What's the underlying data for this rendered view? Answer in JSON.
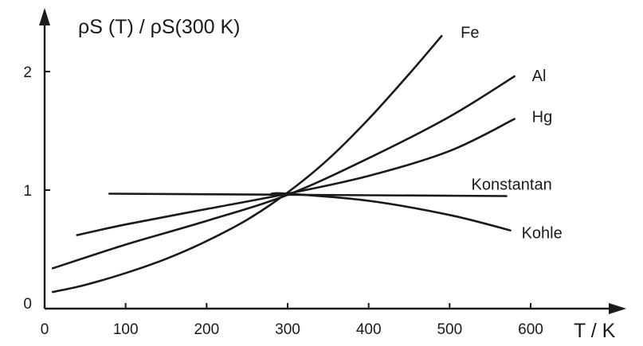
{
  "chart_data": {
    "type": "line",
    "title": "",
    "ylabel": "ρS (T) / ρS(300 K)",
    "xlabel": "T / K",
    "xlim": [
      0,
      680
    ],
    "ylim": [
      0,
      2.45
    ],
    "x_ticks": [
      {
        "value": 0,
        "label": "0"
      },
      {
        "value": 100,
        "label": "100"
      },
      {
        "value": 200,
        "label": "200"
      },
      {
        "value": 300,
        "label": "300"
      },
      {
        "value": 400,
        "label": "400"
      },
      {
        "value": 500,
        "label": "500"
      },
      {
        "value": 600,
        "label": "600"
      }
    ],
    "y_ticks": [
      {
        "value": 0,
        "label": "0"
      },
      {
        "value": 1,
        "label": "1"
      },
      {
        "value": 2,
        "label": "2"
      }
    ],
    "grid": false,
    "legend": "labels at line ends",
    "series": [
      {
        "name": "Fe",
        "points": [
          [
            10,
            0.14
          ],
          [
            50,
            0.2
          ],
          [
            100,
            0.3
          ],
          [
            150,
            0.42
          ],
          [
            200,
            0.57
          ],
          [
            250,
            0.75
          ],
          [
            300,
            0.98
          ],
          [
            350,
            1.26
          ],
          [
            400,
            1.6
          ],
          [
            450,
            1.98
          ],
          [
            490,
            2.3
          ]
        ]
      },
      {
        "name": "Al",
        "points": [
          [
            10,
            0.34
          ],
          [
            100,
            0.54
          ],
          [
            200,
            0.74
          ],
          [
            300,
            0.96
          ],
          [
            400,
            1.27
          ],
          [
            500,
            1.62
          ],
          [
            580,
            1.96
          ]
        ]
      },
      {
        "name": "Hg",
        "points": [
          [
            40,
            0.62
          ],
          [
            100,
            0.71
          ],
          [
            200,
            0.84
          ],
          [
            300,
            0.97
          ],
          [
            400,
            1.12
          ],
          [
            500,
            1.33
          ],
          [
            580,
            1.6
          ]
        ]
      },
      {
        "name": "Konstantan",
        "points": [
          [
            80,
            0.97
          ],
          [
            570,
            0.95
          ]
        ]
      },
      {
        "name": "Kohle",
        "points": [
          [
            280,
            0.97
          ],
          [
            300,
            0.97
          ],
          [
            400,
            0.91
          ],
          [
            500,
            0.79
          ],
          [
            575,
            0.66
          ]
        ]
      }
    ]
  }
}
